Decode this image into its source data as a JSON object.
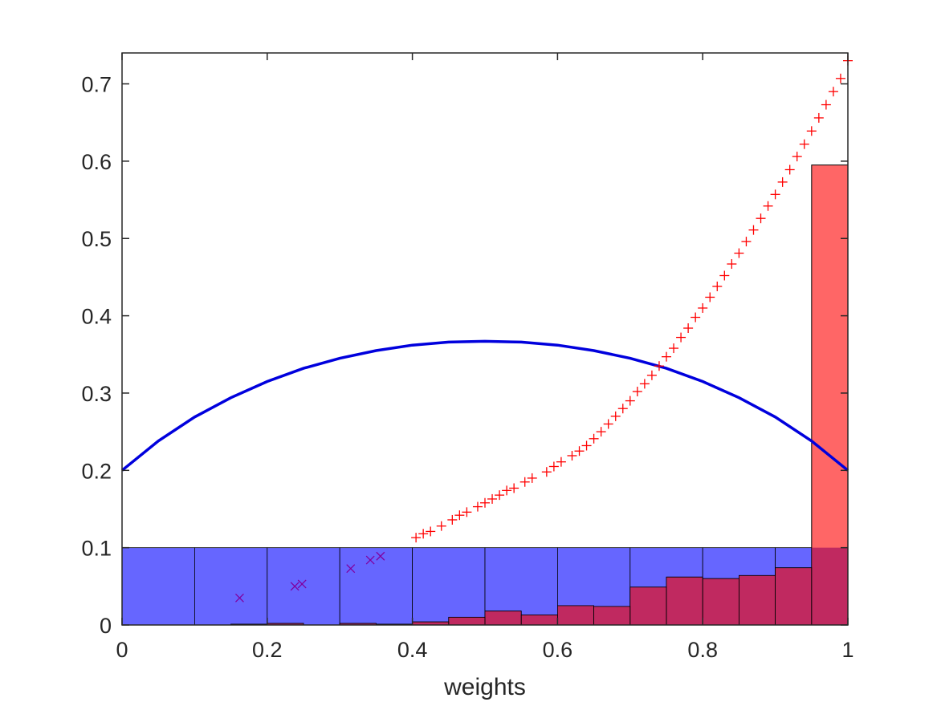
{
  "chart_data": {
    "type": "bar",
    "title": "",
    "xlabel": "weights",
    "ylabel": "",
    "xlim": [
      0,
      1
    ],
    "ylim": [
      0,
      0.74
    ],
    "x_ticks": [
      "0",
      "0.2",
      "0.4",
      "0.6",
      "0.8",
      "1"
    ],
    "y_ticks": [
      "0",
      "0.1",
      "0.2",
      "0.3",
      "0.4",
      "0.5",
      "0.6",
      "0.7"
    ],
    "grid": false,
    "box": true,
    "colors": {
      "blue_bars": "#6666ff",
      "red_bars": "#ff6666",
      "overlap": "#c02960",
      "blue_curve": "#0000dd",
      "red_markers": "#ff0000",
      "purple_markers": "#8000a0",
      "axes": "#262626"
    },
    "histograms": [
      {
        "color": "blue",
        "bins": [
          {
            "x0": 0.0,
            "x1": 0.1,
            "value": 0.1
          },
          {
            "x0": 0.1,
            "x1": 0.2,
            "value": 0.1
          },
          {
            "x0": 0.2,
            "x1": 0.3,
            "value": 0.1
          },
          {
            "x0": 0.3,
            "x1": 0.4,
            "value": 0.1
          },
          {
            "x0": 0.4,
            "x1": 0.5,
            "value": 0.1
          },
          {
            "x0": 0.5,
            "x1": 0.6,
            "value": 0.1
          },
          {
            "x0": 0.6,
            "x1": 0.7,
            "value": 0.1
          },
          {
            "x0": 0.7,
            "x1": 0.8,
            "value": 0.1
          },
          {
            "x0": 0.8,
            "x1": 0.9,
            "value": 0.1
          },
          {
            "x0": 0.9,
            "x1": 1.0,
            "value": 0.1
          }
        ]
      },
      {
        "color": "red",
        "bins": [
          {
            "x0": 0.15,
            "x1": 0.2,
            "value": 0.001
          },
          {
            "x0": 0.2,
            "x1": 0.25,
            "value": 0.002
          },
          {
            "x0": 0.3,
            "x1": 0.35,
            "value": 0.002
          },
          {
            "x0": 0.35,
            "x1": 0.4,
            "value": 0.001
          },
          {
            "x0": 0.4,
            "x1": 0.45,
            "value": 0.004
          },
          {
            "x0": 0.45,
            "x1": 0.5,
            "value": 0.01
          },
          {
            "x0": 0.5,
            "x1": 0.55,
            "value": 0.018
          },
          {
            "x0": 0.55,
            "x1": 0.6,
            "value": 0.013
          },
          {
            "x0": 0.6,
            "x1": 0.65,
            "value": 0.025
          },
          {
            "x0": 0.65,
            "x1": 0.7,
            "value": 0.024
          },
          {
            "x0": 0.7,
            "x1": 0.75,
            "value": 0.049
          },
          {
            "x0": 0.75,
            "x1": 0.8,
            "value": 0.062
          },
          {
            "x0": 0.8,
            "x1": 0.85,
            "value": 0.06
          },
          {
            "x0": 0.85,
            "x1": 0.9,
            "value": 0.064
          },
          {
            "x0": 0.9,
            "x1": 0.95,
            "value": 0.074
          },
          {
            "x0": 0.95,
            "x1": 1.0,
            "value": 0.595
          }
        ]
      }
    ],
    "curve": {
      "color": "blue",
      "points": [
        [
          0.0,
          0.2
        ],
        [
          0.05,
          0.238
        ],
        [
          0.1,
          0.269
        ],
        [
          0.15,
          0.294
        ],
        [
          0.2,
          0.315
        ],
        [
          0.25,
          0.332
        ],
        [
          0.3,
          0.345
        ],
        [
          0.35,
          0.355
        ],
        [
          0.4,
          0.362
        ],
        [
          0.45,
          0.366
        ],
        [
          0.5,
          0.367
        ],
        [
          0.55,
          0.366
        ],
        [
          0.6,
          0.362
        ],
        [
          0.65,
          0.355
        ],
        [
          0.7,
          0.345
        ],
        [
          0.75,
          0.332
        ],
        [
          0.8,
          0.315
        ],
        [
          0.85,
          0.294
        ],
        [
          0.9,
          0.269
        ],
        [
          0.95,
          0.238
        ],
        [
          1.0,
          0.2
        ]
      ]
    },
    "red_markers": {
      "marker": "+",
      "points": [
        [
          0.405,
          0.113
        ],
        [
          0.415,
          0.118
        ],
        [
          0.425,
          0.121
        ],
        [
          0.44,
          0.128
        ],
        [
          0.455,
          0.136
        ],
        [
          0.465,
          0.142
        ],
        [
          0.475,
          0.146
        ],
        [
          0.49,
          0.153
        ],
        [
          0.5,
          0.158
        ],
        [
          0.51,
          0.163
        ],
        [
          0.52,
          0.168
        ],
        [
          0.53,
          0.174
        ],
        [
          0.54,
          0.177
        ],
        [
          0.555,
          0.185
        ],
        [
          0.565,
          0.19
        ],
        [
          0.585,
          0.198
        ],
        [
          0.595,
          0.205
        ],
        [
          0.605,
          0.211
        ],
        [
          0.62,
          0.219
        ],
        [
          0.63,
          0.225
        ],
        [
          0.64,
          0.232
        ],
        [
          0.65,
          0.241
        ],
        [
          0.66,
          0.25
        ],
        [
          0.67,
          0.26
        ],
        [
          0.68,
          0.27
        ],
        [
          0.69,
          0.28
        ],
        [
          0.7,
          0.29
        ],
        [
          0.71,
          0.302
        ],
        [
          0.72,
          0.312
        ],
        [
          0.73,
          0.323
        ],
        [
          0.74,
          0.335
        ],
        [
          0.75,
          0.347
        ],
        [
          0.76,
          0.358
        ],
        [
          0.77,
          0.372
        ],
        [
          0.78,
          0.384
        ],
        [
          0.79,
          0.398
        ],
        [
          0.8,
          0.41
        ],
        [
          0.81,
          0.424
        ],
        [
          0.82,
          0.438
        ],
        [
          0.83,
          0.452
        ],
        [
          0.84,
          0.467
        ],
        [
          0.85,
          0.481
        ],
        [
          0.86,
          0.496
        ],
        [
          0.87,
          0.511
        ],
        [
          0.88,
          0.526
        ],
        [
          0.89,
          0.542
        ],
        [
          0.9,
          0.557
        ],
        [
          0.91,
          0.573
        ],
        [
          0.92,
          0.589
        ],
        [
          0.93,
          0.606
        ],
        [
          0.94,
          0.622
        ],
        [
          0.95,
          0.639
        ],
        [
          0.96,
          0.656
        ],
        [
          0.97,
          0.673
        ],
        [
          0.98,
          0.69
        ],
        [
          0.99,
          0.707
        ],
        [
          1.0,
          0.73
        ]
      ]
    },
    "purple_markers": {
      "marker": "x",
      "points": [
        [
          0.162,
          0.035
        ],
        [
          0.238,
          0.05
        ],
        [
          0.248,
          0.053
        ],
        [
          0.315,
          0.073
        ],
        [
          0.342,
          0.084
        ],
        [
          0.356,
          0.089
        ]
      ]
    }
  }
}
